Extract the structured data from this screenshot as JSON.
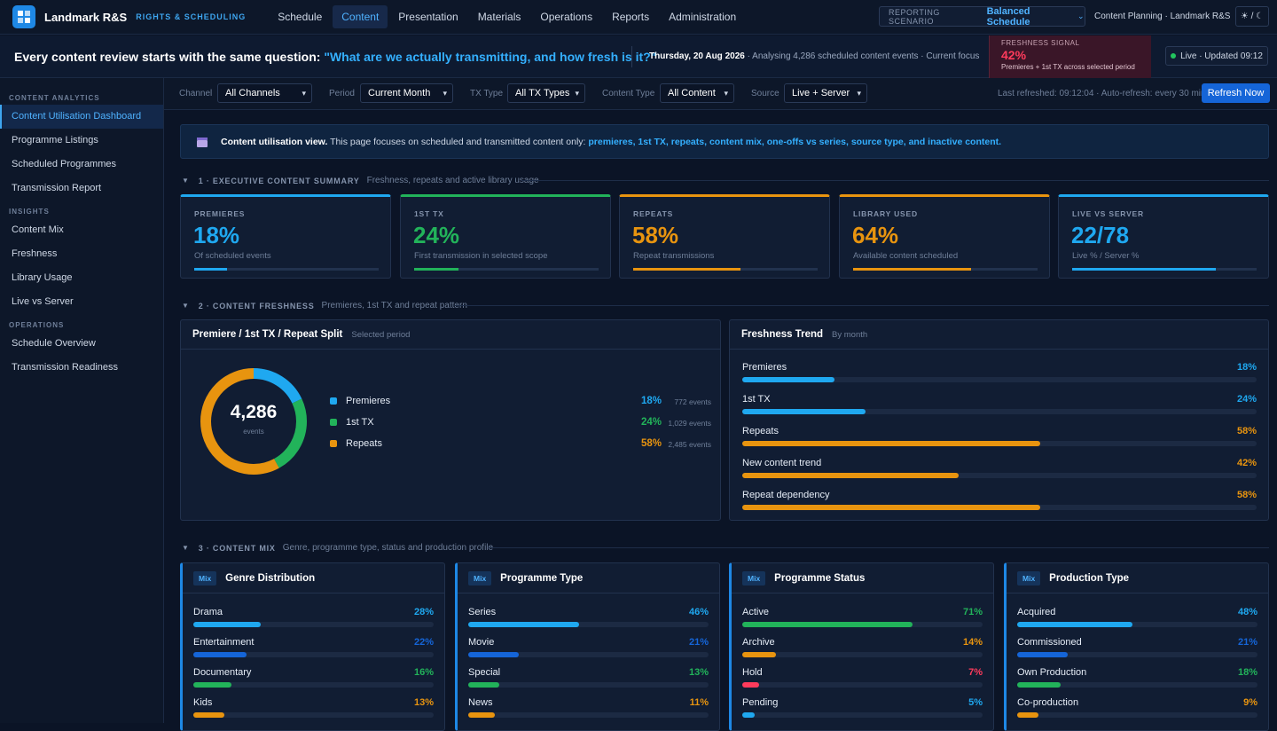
{
  "app": {
    "brand": "Landmark R&S",
    "brand_sub": "RIGHTS & SCHEDULING"
  },
  "nav": [
    "Schedule",
    "Content",
    "Presentation",
    "Materials",
    "Operations",
    "Reports",
    "Administration"
  ],
  "nav_active": "Content",
  "scenario": {
    "label": "REPORTING SCENARIO",
    "value": "Balanced Schedule"
  },
  "tenant": "Content Planning · Landmark R&S",
  "theme_toggle": "☀ / ☾",
  "hero": {
    "question_lead": "Every content review starts with the same question: ",
    "question": "\"What are we actually transmitting, and how fresh is it?\"",
    "date": "Thursday, 20 Aug 2026",
    "meta": " · Analysing 4,286 scheduled content events · Current focus"
  },
  "signal": {
    "label": "FRESHNESS SIGNAL",
    "value": "42%",
    "sub": "Premieres + 1st TX across selected period"
  },
  "live": "Live · Updated 09:12",
  "sidebar": {
    "sections": [
      {
        "title": "CONTENT ANALYTICS",
        "items": [
          "Content Utilisation Dashboard",
          "Programme Listings",
          "Scheduled Programmes",
          "Transmission Report"
        ]
      },
      {
        "title": "INSIGHTS",
        "items": [
          "Content Mix",
          "Freshness",
          "Library Usage",
          "Live vs Server"
        ]
      },
      {
        "title": "OPERATIONS",
        "items": [
          "Schedule Overview",
          "Transmission Readiness"
        ]
      }
    ]
  },
  "filters": {
    "channel": {
      "label": "Channel",
      "value": "All Channels"
    },
    "period": {
      "label": "Period",
      "value": "Current Month"
    },
    "tx_type": {
      "label": "TX Type",
      "value": "All TX Types"
    },
    "content_type": {
      "label": "Content Type",
      "value": "All Content"
    },
    "source": {
      "label": "Source",
      "value": "Live + Server"
    },
    "refreshed": "Last refreshed: 09:12:04 · Auto-refresh: every 30 min",
    "refresh_button": "Refresh Now"
  },
  "banner": {
    "title": "Content utilisation view.",
    "text": " This page focuses on scheduled and transmitted content only: ",
    "highlight": "premieres, 1st TX, repeats, content mix, one-offs vs series, source type, and inactive content."
  },
  "section1": {
    "title": "1 · EXECUTIVE CONTENT SUMMARY",
    "sub": "Freshness, repeats and active library usage"
  },
  "kpis": [
    {
      "label": "PREMIERES",
      "value": "18%",
      "sub": "Of scheduled events",
      "level": 0.18,
      "color": "#1fa8f0"
    },
    {
      "label": "1ST TX",
      "value": "24%",
      "sub": "First transmission in selected scope",
      "level": 0.24,
      "color": "#22b35a"
    },
    {
      "label": "REPEATS",
      "value": "58%",
      "sub": "Repeat transmissions",
      "level": 0.58,
      "color": "#e8940f"
    },
    {
      "label": "LIBRARY USED",
      "value": "64%",
      "sub": "Available content scheduled",
      "level": 0.64,
      "color": "#e8940f"
    },
    {
      "label": "LIVE VS SERVER",
      "value": "22/78",
      "sub": "Live % / Server %",
      "level": 0.78,
      "color": "#1fa8f0"
    }
  ],
  "section2": {
    "title": "2 · CONTENT FRESHNESS",
    "sub": "Premieres, 1st TX and repeat pattern"
  },
  "split": {
    "title": "Premiere / 1st TX / Repeat Split",
    "sub": "Selected period",
    "total": "4,286",
    "total_label": "events",
    "rows": [
      {
        "name": "Premieres",
        "pct": "18%",
        "events": "772 events",
        "value": 18,
        "color": "#1fa8f0"
      },
      {
        "name": "1st TX",
        "pct": "24%",
        "events": "1,029 events",
        "value": 24,
        "color": "#22b35a"
      },
      {
        "name": "Repeats",
        "pct": "58%",
        "events": "2,485 events",
        "value": 58,
        "color": "#e8940f"
      }
    ]
  },
  "trend": {
    "title": "Freshness Trend",
    "sub": "By month",
    "rows": [
      {
        "name": "Premieres",
        "pct": "18%",
        "value": 18,
        "color": "#1fa8f0"
      },
      {
        "name": "1st TX",
        "pct": "24%",
        "value": 24,
        "color": "#1fa8f0"
      },
      {
        "name": "Repeats",
        "pct": "58%",
        "value": 58,
        "color": "#e8940f"
      },
      {
        "name": "New content trend",
        "pct": "42%",
        "value": 42,
        "color": "#e8940f"
      },
      {
        "name": "Repeat dependency",
        "pct": "58%",
        "value": 58,
        "color": "#e8940f"
      }
    ]
  },
  "section3": {
    "title": "3 · CONTENT MIX",
    "sub": "Genre, programme type, status and production profile"
  },
  "mix": [
    {
      "tag": "Mix",
      "title": "Genre Distribution",
      "rows": [
        {
          "name": "Drama",
          "pct": "28%",
          "value": 28,
          "color": "#1fa8f0"
        },
        {
          "name": "Entertainment",
          "pct": "22%",
          "value": 22,
          "color": "#1565d8"
        },
        {
          "name": "Documentary",
          "pct": "16%",
          "value": 16,
          "color": "#22b35a"
        },
        {
          "name": "Kids",
          "pct": "13%",
          "value": 13,
          "color": "#e8940f"
        }
      ]
    },
    {
      "tag": "Mix",
      "title": "Programme Type",
      "rows": [
        {
          "name": "Series",
          "pct": "46%",
          "value": 46,
          "color": "#1fa8f0"
        },
        {
          "name": "Movie",
          "pct": "21%",
          "value": 21,
          "color": "#1565d8"
        },
        {
          "name": "Special",
          "pct": "13%",
          "value": 13,
          "color": "#22b35a"
        },
        {
          "name": "News",
          "pct": "11%",
          "value": 11,
          "color": "#e8940f"
        }
      ]
    },
    {
      "tag": "Mix",
      "title": "Programme Status",
      "rows": [
        {
          "name": "Active",
          "pct": "71%",
          "value": 71,
          "color": "#22b35a"
        },
        {
          "name": "Archive",
          "pct": "14%",
          "value": 14,
          "color": "#e8940f"
        },
        {
          "name": "Hold",
          "pct": "7%",
          "value": 7,
          "color": "#ff3b5c"
        },
        {
          "name": "Pending",
          "pct": "5%",
          "value": 5,
          "color": "#1fa8f0"
        }
      ]
    },
    {
      "tag": "Mix",
      "title": "Production Type",
      "rows": [
        {
          "name": "Acquired",
          "pct": "48%",
          "value": 48,
          "color": "#1fa8f0"
        },
        {
          "name": "Commissioned",
          "pct": "21%",
          "value": 21,
          "color": "#1565d8"
        },
        {
          "name": "Own Production",
          "pct": "18%",
          "value": 18,
          "color": "#22b35a"
        },
        {
          "name": "Co-production",
          "pct": "9%",
          "value": 9,
          "color": "#e8940f"
        }
      ]
    }
  ]
}
